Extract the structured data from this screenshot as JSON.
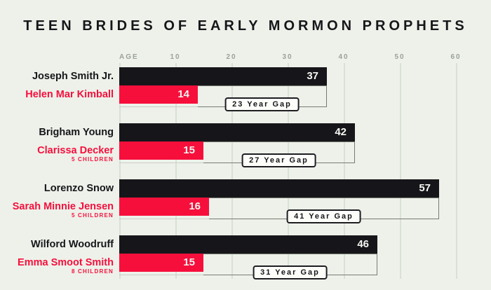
{
  "chart_data": {
    "type": "bar",
    "title": "TEEN BRIDES OF EARLY MORMON PROPHETS",
    "orientation": "horizontal",
    "axis": {
      "label": "AGE",
      "ticks": [
        10,
        20,
        30,
        40,
        50,
        60
      ],
      "min": 0,
      "max": 60
    },
    "legend": "none",
    "grid": "vertical-lines-on",
    "groups": [
      {
        "husband": {
          "name": "Joseph Smith Jr.",
          "age": 37
        },
        "wife": {
          "name": "Helen Mar Kimball",
          "age": 14,
          "children": ""
        },
        "gap_years": 23,
        "gap_label": "23 Year Gap"
      },
      {
        "husband": {
          "name": "Brigham Young",
          "age": 42
        },
        "wife": {
          "name": "Clarissa Decker",
          "age": 15,
          "children": "5 CHILDREN"
        },
        "gap_years": 27,
        "gap_label": "27 Year Gap"
      },
      {
        "husband": {
          "name": "Lorenzo Snow",
          "age": 57
        },
        "wife": {
          "name": "Sarah Minnie Jensen",
          "age": 16,
          "children": "5 CHILDREN"
        },
        "gap_years": 41,
        "gap_label": "41 Year Gap"
      },
      {
        "husband": {
          "name": "Wilford Woodruff",
          "age": 46
        },
        "wife": {
          "name": "Emma Smoot Smith",
          "age": 15,
          "children": "8 CHILDREN"
        },
        "gap_years": 31,
        "gap_label": "31 Year Gap"
      }
    ],
    "colors": {
      "background": "#eef1ea",
      "husband_bar": "#16161a",
      "wife_bar": "#f70f3c",
      "axis_text": "#9aa296",
      "gridline": "#dae0d6"
    }
  }
}
